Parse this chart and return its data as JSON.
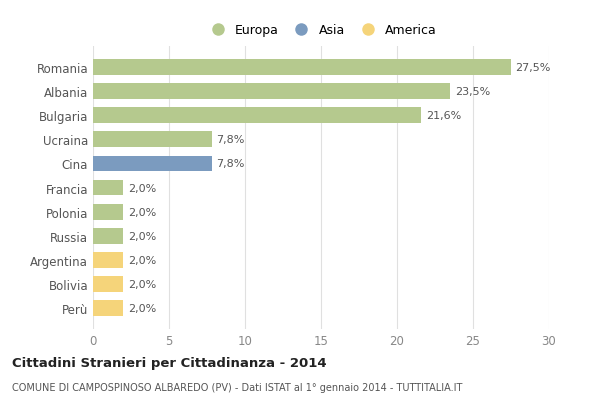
{
  "categories": [
    "Romania",
    "Albania",
    "Bulgaria",
    "Ucraina",
    "Cina",
    "Francia",
    "Polonia",
    "Russia",
    "Argentina",
    "Bolivia",
    "Perù"
  ],
  "values": [
    27.5,
    23.5,
    21.6,
    7.8,
    7.8,
    2.0,
    2.0,
    2.0,
    2.0,
    2.0,
    2.0
  ],
  "labels": [
    "27,5%",
    "23,5%",
    "21,6%",
    "7,8%",
    "7,8%",
    "2,0%",
    "2,0%",
    "2,0%",
    "2,0%",
    "2,0%",
    "2,0%"
  ],
  "colors": [
    "#b5c98e",
    "#b5c98e",
    "#b5c98e",
    "#b5c98e",
    "#7b9bbf",
    "#b5c98e",
    "#b5c98e",
    "#b5c98e",
    "#f5d47a",
    "#f5d47a",
    "#f5d47a"
  ],
  "legend": [
    {
      "label": "Europa",
      "color": "#b5c98e"
    },
    {
      "label": "Asia",
      "color": "#7b9bbf"
    },
    {
      "label": "America",
      "color": "#f5d47a"
    }
  ],
  "xlim": [
    0,
    30
  ],
  "xticks": [
    0,
    5,
    10,
    15,
    20,
    25,
    30
  ],
  "title": "Cittadini Stranieri per Cittadinanza - 2014",
  "subtitle": "COMUNE DI CAMPOSPINOSO ALBAREDO (PV) - Dati ISTAT al 1° gennaio 2014 - TUTTITALIA.IT",
  "bg_color": "#ffffff",
  "grid_color": "#e0e0e0",
  "bar_height": 0.65,
  "label_fontsize": 8,
  "ytick_fontsize": 8.5,
  "xtick_fontsize": 8.5
}
